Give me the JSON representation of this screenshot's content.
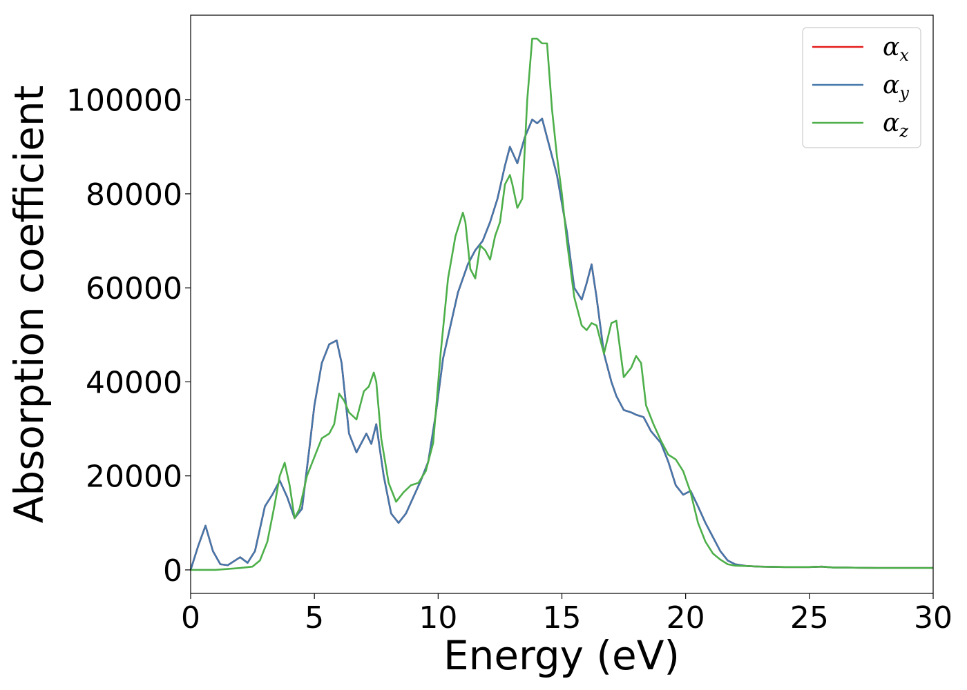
{
  "chart_data": {
    "type": "line",
    "title": "",
    "xlabel": "Energy (eV)",
    "ylabel": "Absorption coefficient",
    "xlim": [
      0,
      30
    ],
    "ylim": [
      -5000,
      118000
    ],
    "xticks": [
      0,
      5,
      10,
      15,
      20,
      25,
      30
    ],
    "yticks": [
      0,
      20000,
      40000,
      60000,
      80000,
      100000
    ],
    "grid": false,
    "legend_position": "top-right",
    "series": [
      {
        "name": "α",
        "sub": "x",
        "color": "#e41a1c",
        "x": [
          0,
          0.3,
          0.6,
          0.9,
          1.2,
          1.5,
          2.0,
          2.3,
          2.6,
          3.0,
          3.3,
          3.6,
          3.9,
          4.2,
          4.5,
          4.8,
          5.0,
          5.3,
          5.6,
          5.9,
          6.1,
          6.4,
          6.7,
          6.9,
          7.1,
          7.3,
          7.5,
          7.8,
          8.1,
          8.4,
          8.7,
          9.0,
          9.3,
          9.6,
          9.9,
          10.2,
          10.5,
          10.8,
          11.0,
          11.2,
          11.5,
          11.8,
          12.1,
          12.4,
          12.7,
          12.9,
          13.2,
          13.5,
          13.8,
          14.0,
          14.2,
          14.4,
          14.6,
          14.8,
          15.0,
          15.2,
          15.5,
          15.8,
          16.0,
          16.2,
          16.4,
          16.7,
          17.0,
          17.2,
          17.5,
          17.8,
          18.0,
          18.3,
          18.6,
          19.0,
          19.3,
          19.6,
          19.9,
          20.2,
          20.5,
          20.8,
          21.1,
          21.4,
          21.7,
          22.0,
          22.5,
          23,
          24,
          25,
          25.5,
          26,
          26.5,
          27,
          28,
          30
        ],
        "values": [
          0,
          5000,
          9400,
          4000,
          1200,
          1000,
          2700,
          1500,
          4000,
          13500,
          16000,
          19000,
          15500,
          11000,
          13000,
          26000,
          35000,
          44000,
          48000,
          48800,
          44000,
          29000,
          25000,
          27000,
          29000,
          26800,
          31000,
          20000,
          12000,
          10000,
          12000,
          15500,
          19000,
          23000,
          33000,
          45000,
          52000,
          59000,
          62000,
          65000,
          68000,
          70000,
          74000,
          79000,
          86000,
          90000,
          86500,
          92000,
          95800,
          95000,
          96000,
          92000,
          88000,
          84000,
          78000,
          72000,
          60000,
          57500,
          61000,
          65000,
          58000,
          46000,
          40000,
          37000,
          34000,
          33500,
          33000,
          32500,
          29500,
          27000,
          23000,
          18000,
          16000,
          16800,
          13500,
          10000,
          7000,
          4000,
          2000,
          1200,
          800,
          700,
          600,
          600,
          700,
          500,
          500,
          450,
          400,
          400
        ]
      },
      {
        "name": "α",
        "sub": "y",
        "color": "#4477aa",
        "x": [
          0,
          0.3,
          0.6,
          0.9,
          1.2,
          1.5,
          2.0,
          2.3,
          2.6,
          3.0,
          3.3,
          3.6,
          3.9,
          4.2,
          4.5,
          4.8,
          5.0,
          5.3,
          5.6,
          5.9,
          6.1,
          6.4,
          6.7,
          6.9,
          7.1,
          7.3,
          7.5,
          7.8,
          8.1,
          8.4,
          8.7,
          9.0,
          9.3,
          9.6,
          9.9,
          10.2,
          10.5,
          10.8,
          11.0,
          11.2,
          11.5,
          11.8,
          12.1,
          12.4,
          12.7,
          12.9,
          13.2,
          13.5,
          13.8,
          14.0,
          14.2,
          14.4,
          14.6,
          14.8,
          15.0,
          15.2,
          15.5,
          15.8,
          16.0,
          16.2,
          16.4,
          16.7,
          17.0,
          17.2,
          17.5,
          17.8,
          18.0,
          18.3,
          18.6,
          19.0,
          19.3,
          19.6,
          19.9,
          20.2,
          20.5,
          20.8,
          21.1,
          21.4,
          21.7,
          22.0,
          22.5,
          23,
          24,
          25,
          25.5,
          26,
          26.5,
          27,
          28,
          30
        ],
        "values": [
          0,
          5000,
          9400,
          4000,
          1200,
          1000,
          2700,
          1500,
          4000,
          13500,
          16000,
          19000,
          15500,
          11000,
          13000,
          26000,
          35000,
          44000,
          48000,
          48800,
          44000,
          29000,
          25000,
          27000,
          29000,
          26800,
          31000,
          20000,
          12000,
          10000,
          12000,
          15500,
          19000,
          23000,
          33000,
          45000,
          52000,
          59000,
          62000,
          65000,
          68000,
          70000,
          74000,
          79000,
          86000,
          90000,
          86500,
          92000,
          95800,
          95000,
          96000,
          92000,
          88000,
          84000,
          78000,
          72000,
          60000,
          57500,
          61000,
          65000,
          58000,
          46000,
          40000,
          37000,
          34000,
          33500,
          33000,
          32500,
          29500,
          27000,
          23000,
          18000,
          16000,
          16800,
          13500,
          10000,
          7000,
          4000,
          2000,
          1200,
          800,
          700,
          600,
          600,
          700,
          500,
          500,
          450,
          400,
          400
        ]
      },
      {
        "name": "α",
        "sub": "z",
        "color": "#4daf4a",
        "x": [
          0,
          0.5,
          1.0,
          1.5,
          2.0,
          2.5,
          2.8,
          3.1,
          3.4,
          3.6,
          3.8,
          4.0,
          4.2,
          4.4,
          4.7,
          5.0,
          5.3,
          5.6,
          5.8,
          6.0,
          6.2,
          6.4,
          6.7,
          7.0,
          7.2,
          7.4,
          7.5,
          7.7,
          8.0,
          8.3,
          8.6,
          8.9,
          9.2,
          9.5,
          9.8,
          10.1,
          10.4,
          10.7,
          11.0,
          11.1,
          11.3,
          11.5,
          11.7,
          11.9,
          12.1,
          12.3,
          12.5,
          12.7,
          12.9,
          13.0,
          13.2,
          13.4,
          13.6,
          13.8,
          14.0,
          14.2,
          14.4,
          14.6,
          14.8,
          15.0,
          15.2,
          15.5,
          15.8,
          16.0,
          16.2,
          16.4,
          16.7,
          17.0,
          17.2,
          17.5,
          17.8,
          18.0,
          18.2,
          18.4,
          18.7,
          19.0,
          19.3,
          19.6,
          19.9,
          20.2,
          20.5,
          20.8,
          21.1,
          21.4,
          21.7,
          22.0,
          22.5,
          23,
          24,
          25,
          25.5,
          26,
          26.5,
          27,
          28,
          30
        ],
        "values": [
          0,
          0,
          0,
          200,
          400,
          700,
          2000,
          6000,
          14000,
          20000,
          22800,
          18000,
          11000,
          13000,
          20000,
          24000,
          28000,
          29000,
          31000,
          37500,
          36000,
          33500,
          32000,
          38000,
          39000,
          42000,
          40000,
          28000,
          18500,
          14500,
          16500,
          18000,
          18500,
          21000,
          27000,
          46000,
          62000,
          71000,
          76000,
          74000,
          64000,
          62000,
          69000,
          68000,
          66000,
          71000,
          74000,
          82000,
          84000,
          82000,
          77000,
          79000,
          100000,
          113000,
          113000,
          112000,
          112000,
          98000,
          88000,
          80000,
          70000,
          58000,
          52000,
          51000,
          52500,
          52000,
          46000,
          52500,
          53000,
          41000,
          43000,
          45500,
          44000,
          35000,
          31000,
          27500,
          24500,
          23500,
          21000,
          16500,
          10000,
          6000,
          3500,
          2200,
          1200,
          900,
          800,
          700,
          600,
          600,
          700,
          500,
          500,
          450,
          400,
          400
        ]
      }
    ]
  }
}
